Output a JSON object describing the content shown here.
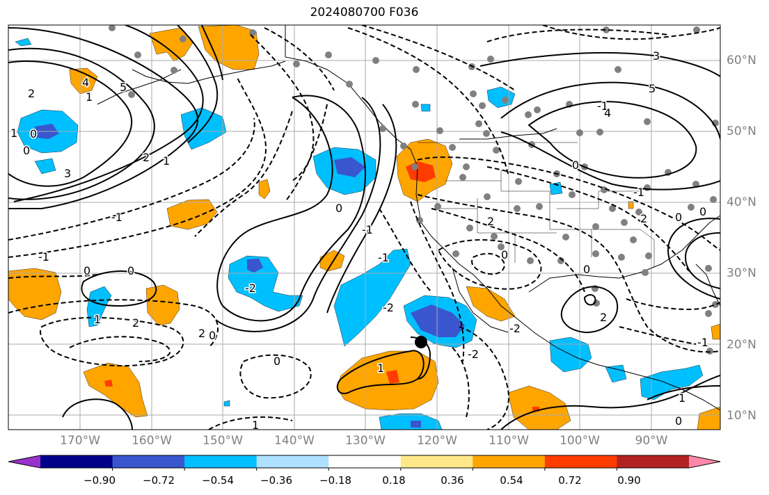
{
  "title": "2024080700 F036",
  "lat_labels": [
    "60°N",
    "50°N",
    "40°N",
    "30°N",
    "20°N",
    "10°N"
  ],
  "lon_labels": [
    "170°W",
    "160°W",
    "150°W",
    "140°W",
    "130°W",
    "120°W",
    "110°W",
    "100°W",
    "90°W"
  ],
  "colorbar": {
    "colors": [
      "#9932cc",
      "#00008b",
      "#3a56cf",
      "#00bfff",
      "#aee0ff",
      "#ffffff",
      "#ffe78a",
      "#ffa500",
      "#ff3c00",
      "#b22222",
      "#ff88aa"
    ],
    "tick_labels": [
      "−0.90",
      "−0.72",
      "−0.54",
      "−0.36",
      "−0.18",
      "0.18",
      "0.36",
      "0.54",
      "0.72",
      "0.90"
    ]
  },
  "contour_labels": [
    "1",
    "0",
    "0",
    "3",
    "2",
    "1",
    "4",
    "5",
    "1",
    "2",
    "0",
    "-1",
    "0",
    "2",
    "1",
    "-2",
    "0",
    "2",
    "0",
    "1",
    "-1",
    "-2",
    "0",
    "0",
    "2",
    "0",
    "-1",
    "2",
    "0",
    "0",
    "-1",
    "4",
    "5",
    "3",
    "2",
    "0",
    "-2",
    "-1",
    "-1",
    "0",
    "1",
    "-1",
    "-1",
    "-2",
    "1"
  ],
  "marker": {
    "label": "storm center",
    "lon": -122.0,
    "lat": 20.3
  },
  "colors": {
    "grid": "#aaaaaa",
    "station": "#808080",
    "coast": "#000000"
  }
}
